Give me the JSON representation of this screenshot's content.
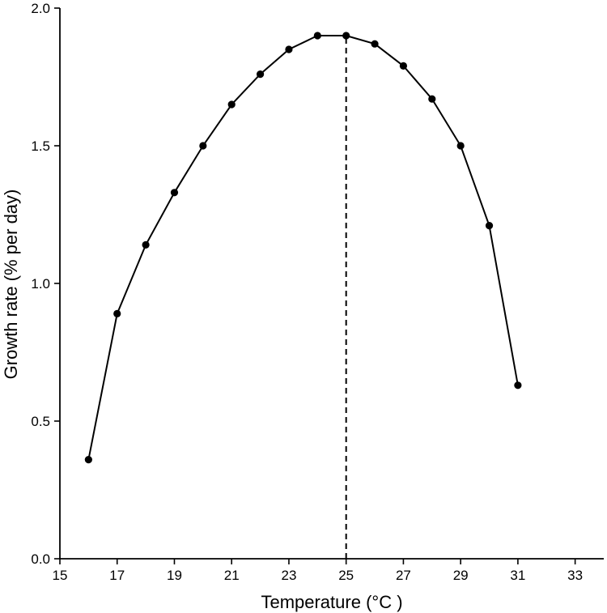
{
  "chart_data": {
    "type": "line",
    "title": "",
    "xlabel": "Temperature (°C )",
    "ylabel": "Growth rate (% per day)",
    "xlim": [
      15,
      34
    ],
    "ylim": [
      0,
      2.0
    ],
    "xticks": [
      15,
      17,
      19,
      21,
      23,
      25,
      27,
      29,
      31,
      33
    ],
    "yticks": [
      0.0,
      0.5,
      1.0,
      1.5,
      2.0
    ],
    "ytick_labels": [
      "0.0",
      "0.5",
      "1.0",
      "1.5",
      "2.0"
    ],
    "grid": false,
    "series": [
      {
        "x": [
          16,
          17,
          18,
          19,
          20,
          21,
          22,
          23,
          24,
          25,
          26,
          27,
          28,
          29,
          30,
          31
        ],
        "y": [
          0.36,
          0.89,
          1.14,
          1.33,
          1.5,
          1.65,
          1.76,
          1.85,
          1.9,
          1.9,
          1.87,
          1.79,
          1.67,
          1.5,
          1.21,
          0.63
        ],
        "color": "#000000",
        "marker": "circle"
      }
    ],
    "annotations": [
      {
        "type": "vertical-dashed-line",
        "x": 25,
        "y_from": 0,
        "y_to": 1.9
      }
    ]
  }
}
